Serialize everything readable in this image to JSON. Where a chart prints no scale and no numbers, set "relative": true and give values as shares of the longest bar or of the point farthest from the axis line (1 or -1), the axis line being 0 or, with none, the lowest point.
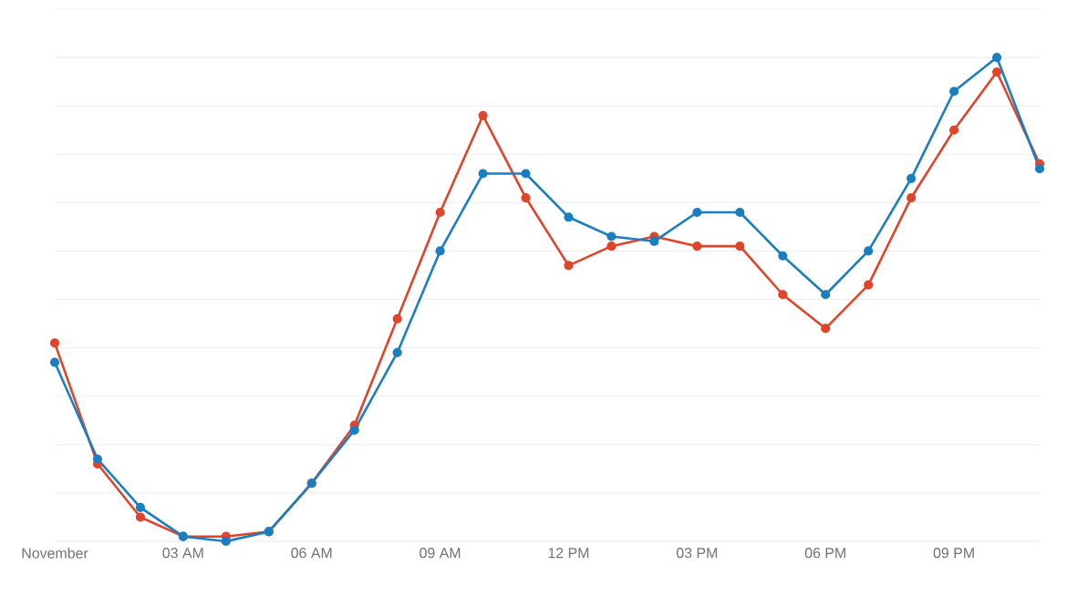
{
  "chart_data": {
    "type": "line",
    "relative": true,
    "grid": "y",
    "marker": "circle",
    "line_style": "solid",
    "categories": [
      "November",
      null,
      null,
      "03 AM",
      null,
      null,
      "06 AM",
      null,
      null,
      "09 AM",
      null,
      null,
      "12 PM",
      null,
      null,
      "03 PM",
      null,
      null,
      "06 PM",
      null,
      null,
      "09 PM",
      null,
      null
    ],
    "series": [
      {
        "color": "#e0452b",
        "values": [
          0.41,
          0.16,
          0.05,
          0.01,
          0.01,
          0.02,
          0.12,
          0.24,
          0.46,
          0.68,
          0.88,
          0.71,
          0.57,
          0.61,
          0.63,
          0.61,
          0.61,
          0.51,
          0.44,
          0.53,
          0.71,
          0.85,
          0.97,
          0.78
        ]
      },
      {
        "color": "#1a7fc0",
        "values": [
          0.37,
          0.17,
          0.07,
          0.01,
          0,
          0.02,
          0.12,
          0.23,
          0.39,
          0.6,
          0.76,
          0.76,
          0.67,
          0.63,
          0.62,
          0.68,
          0.68,
          0.59,
          0.51,
          0.6,
          0.75,
          0.93,
          1,
          0.77
        ]
      }
    ]
  }
}
